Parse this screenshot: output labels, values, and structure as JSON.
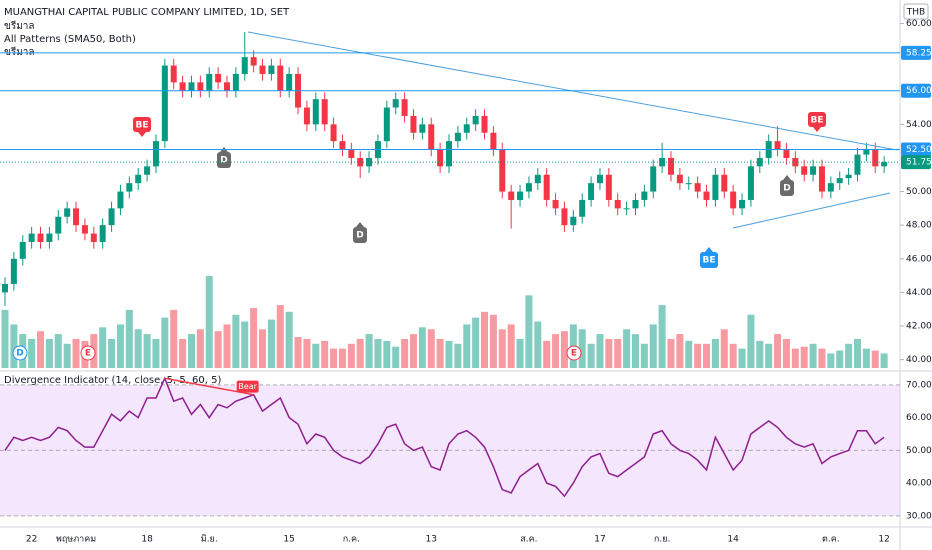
{
  "chart_data": [
    {
      "type": "candlestick",
      "title": "MUANGTHAI CAPITAL PUBLIC COMPANY LIMITED, 1D, SET",
      "subtitles": [
        "ขรีมาล",
        "All Patterns (SMA50, Both)",
        "ขรีมาล"
      ],
      "currency": "THB",
      "up_color": "#089981",
      "down_color": "#f23645",
      "open": [
        44,
        44.5,
        46,
        47,
        47.5,
        47,
        47.5,
        48.5,
        49,
        48,
        47.5,
        47,
        48,
        49,
        50,
        50.5,
        51,
        51.5,
        53,
        57.5,
        56.5,
        56,
        56.5,
        56,
        57,
        56.5,
        56,
        57,
        58,
        57.5,
        57,
        57.5,
        56,
        57,
        55,
        54,
        55.5,
        54,
        53,
        52.5,
        52,
        51.5,
        52,
        53,
        55,
        55.5,
        54.5,
        53.5,
        54,
        52.5,
        51.5,
        53,
        53.5,
        54,
        54.5,
        53.5,
        52.5,
        50,
        49.5,
        50,
        50.5,
        51,
        49.5,
        49,
        48,
        48.5,
        49.5,
        50.5,
        51,
        49.5,
        49,
        49,
        49.5,
        50,
        51.5,
        52,
        51,
        50.5,
        50.5,
        50,
        49.5,
        51,
        50,
        49,
        49.5,
        51.5,
        52,
        53,
        52.5,
        52,
        51.5,
        51,
        51.5,
        50,
        50.5,
        50.8,
        51,
        52.2,
        52.5,
        51.5
      ],
      "high": [
        44.9,
        46.4,
        47.4,
        47.9,
        47.9,
        47.9,
        48.9,
        49.4,
        49.4,
        48.4,
        47.9,
        48.4,
        49.4,
        50.4,
        50.9,
        51.4,
        51.9,
        53.4,
        57.9,
        57.9,
        56.9,
        56.9,
        56.9,
        57.4,
        57.4,
        56.9,
        57.4,
        59.5,
        58.4,
        57.9,
        57.9,
        57.9,
        57.4,
        57.4,
        55.4,
        55.9,
        55.9,
        54.4,
        53.4,
        52.9,
        52.4,
        52.4,
        53.4,
        55.4,
        55.9,
        55.9,
        54.9,
        54.4,
        54.4,
        52.9,
        53.4,
        53.9,
        54.4,
        54.9,
        54.9,
        53.9,
        52.9,
        50.4,
        50.4,
        50.9,
        51.4,
        51.4,
        49.9,
        49.4,
        48.9,
        49.9,
        50.9,
        51.4,
        51.4,
        49.9,
        49.4,
        49.9,
        50.4,
        51.9,
        52.9,
        52.4,
        51.4,
        50.9,
        50.9,
        50.4,
        51.4,
        51.4,
        50.4,
        49.9,
        51.9,
        52.4,
        53.4,
        53.9,
        52.9,
        52.4,
        51.9,
        51.9,
        51.9,
        50.9,
        51.2,
        51.4,
        52.6,
        52.9,
        52.9,
        52.1
      ],
      "low": [
        43.2,
        44.1,
        45.6,
        46.6,
        46.6,
        46.6,
        47.1,
        48.1,
        47.6,
        47.1,
        46.6,
        46.6,
        47.6,
        48.6,
        49.6,
        50.1,
        50.6,
        51.1,
        52.6,
        56.1,
        55.6,
        55.6,
        55.6,
        55.6,
        56.1,
        55.6,
        55.6,
        56.6,
        57.1,
        56.6,
        56.6,
        55.6,
        55.6,
        54.6,
        53.6,
        53.6,
        53.6,
        52.6,
        52.1,
        51.6,
        50.8,
        51.1,
        51.6,
        52.6,
        54.6,
        54.1,
        53.1,
        53.1,
        52.1,
        51.1,
        51.1,
        52.6,
        53.1,
        53.6,
        53.1,
        52.1,
        49.6,
        47.8,
        49.1,
        49.6,
        50.1,
        49.1,
        48.6,
        47.6,
        47.6,
        48.1,
        49.1,
        50.1,
        49.1,
        48.6,
        48.6,
        48.6,
        49.1,
        49.6,
        51.1,
        50.6,
        50.1,
        50.1,
        49.6,
        49.1,
        49.1,
        49.6,
        48.6,
        48.6,
        49.1,
        51.1,
        51.6,
        52.1,
        51.6,
        51.1,
        50.6,
        50.6,
        49.6,
        49.6,
        50.1,
        50.4,
        50.6,
        51.8,
        51.1,
        51.1
      ],
      "close": [
        44.5,
        46,
        47,
        47.5,
        47,
        47.5,
        48.5,
        49,
        48,
        47.5,
        47,
        48,
        49,
        50,
        50.5,
        51,
        51.5,
        53,
        57.5,
        56.5,
        56,
        56.5,
        56,
        57,
        56.5,
        56,
        57,
        58,
        57.5,
        57,
        57.5,
        56,
        57,
        55,
        54,
        55.5,
        54,
        53,
        52.5,
        52,
        51.5,
        52,
        53,
        55,
        55.5,
        54.5,
        53.5,
        54,
        52.5,
        51.5,
        53,
        53.5,
        54,
        54.5,
        53.5,
        52.5,
        50,
        49.5,
        50,
        50.5,
        51,
        49.5,
        49,
        48,
        48.5,
        49.5,
        50.5,
        51,
        49.5,
        49,
        49,
        49.5,
        50,
        51.5,
        52,
        51,
        50.5,
        50.5,
        50,
        49.5,
        51,
        50,
        49,
        49.5,
        51.5,
        52,
        53,
        52.5,
        52,
        51.5,
        51,
        51.5,
        50,
        50.5,
        50.8,
        51,
        52.2,
        52.5,
        51.5,
        51.75
      ],
      "volume": [
        60,
        45,
        35,
        30,
        38,
        30,
        35,
        25,
        30,
        28,
        35,
        42,
        30,
        45,
        60,
        40,
        35,
        30,
        52,
        60,
        30,
        35,
        40,
        95,
        38,
        45,
        55,
        48,
        62,
        40,
        50,
        65,
        58,
        32,
        30,
        25,
        28,
        20,
        20,
        25,
        30,
        35,
        30,
        28,
        22,
        30,
        35,
        42,
        40,
        30,
        28,
        25,
        45,
        52,
        58,
        55,
        40,
        45,
        30,
        75,
        48,
        28,
        35,
        38,
        45,
        40,
        25,
        35,
        30,
        30,
        40,
        35,
        25,
        45,
        65,
        30,
        35,
        28,
        25,
        25,
        30,
        40,
        25,
        20,
        55,
        28,
        25,
        35,
        30,
        20,
        22,
        25,
        20,
        15,
        18,
        25,
        30,
        20,
        18,
        15
      ],
      "volume_ylim": [
        0,
        380
      ],
      "ylim": [
        39.5,
        61.4
      ],
      "yticks": [
        {
          "value": 40,
          "label": "40.00"
        },
        {
          "value": 42,
          "label": "42.00"
        },
        {
          "value": 44,
          "label": "44.00"
        },
        {
          "value": 46,
          "label": "46.00"
        },
        {
          "value": 48,
          "label": "48.00"
        },
        {
          "value": 50,
          "label": "50.00"
        },
        {
          "value": 54,
          "label": "54.00"
        },
        {
          "value": 60,
          "label": "60.00"
        }
      ],
      "levels": [
        58.25,
        {
          "value": 56,
          "label": "56.00"
        },
        {
          "value": 52.5,
          "label": "52.50"
        }
      ],
      "last_price": 51.75,
      "markers": [
        "BE",
        "D",
        "D",
        "BE",
        "D",
        "BE"
      ],
      "events": [
        "D",
        "E",
        "E"
      ]
    },
    {
      "type": "line",
      "title": "Divergence Indicator (14, close, 5, 5, 60, 5)",
      "color": "#8e1f8e",
      "annotation": "Bear",
      "categories": [
        null,
        null,
        null,
        "22",
        null,
        null,
        null,
        null,
        "พฤษภาคม",
        null,
        null,
        null,
        null,
        null,
        null,
        null,
        "18",
        null,
        null,
        null,
        null,
        null,
        null,
        "มิ.ย.",
        null,
        null,
        null,
        null,
        null,
        null,
        null,
        null,
        "15",
        null,
        null,
        null,
        null,
        null,
        null,
        "ก.ค.",
        null,
        null,
        null,
        null,
        null,
        null,
        null,
        null,
        "13",
        null,
        null,
        null,
        null,
        null,
        null,
        null,
        null,
        null,
        null,
        "ส.ค.",
        null,
        null,
        null,
        null,
        null,
        null,
        null,
        "17",
        null,
        null,
        null,
        null,
        null,
        null,
        "ก.ย.",
        null,
        null,
        null,
        null,
        null,
        null,
        null,
        "14",
        null,
        null,
        null,
        null,
        null,
        null,
        null,
        null,
        null,
        null,
        "ต.ค.",
        null,
        null,
        null,
        null,
        null,
        "12"
      ],
      "values": [
        50,
        54,
        53,
        54,
        53,
        54,
        57,
        56,
        53,
        51,
        51,
        56,
        61,
        59,
        62,
        60,
        66,
        66,
        72,
        65,
        66,
        61,
        64,
        60,
        64,
        63,
        65,
        66,
        67,
        62,
        64,
        66,
        60,
        58,
        52,
        55,
        54,
        50,
        48,
        47,
        46,
        48,
        52,
        57,
        58,
        52,
        50,
        51,
        45,
        44,
        52,
        55,
        56,
        54,
        51,
        45,
        38,
        37,
        42,
        44,
        46,
        40,
        39,
        36,
        40,
        45,
        48,
        49,
        43,
        42,
        44,
        46,
        48,
        55,
        56,
        52,
        50,
        49,
        47,
        44,
        54,
        49,
        44,
        47,
        55,
        57,
        59,
        57,
        54,
        52,
        51,
        52,
        46,
        48,
        49,
        50,
        56,
        56,
        52,
        54
      ],
      "ylim": [
        26.6,
        72.4
      ],
      "yticks": [
        {
          "value": 30,
          "label": "30.00"
        },
        {
          "value": 40,
          "label": "40.00"
        },
        {
          "value": 50,
          "label": "50.00"
        },
        {
          "value": 60,
          "label": "60.00"
        },
        {
          "value": 70,
          "label": "70.00"
        }
      ]
    }
  ]
}
